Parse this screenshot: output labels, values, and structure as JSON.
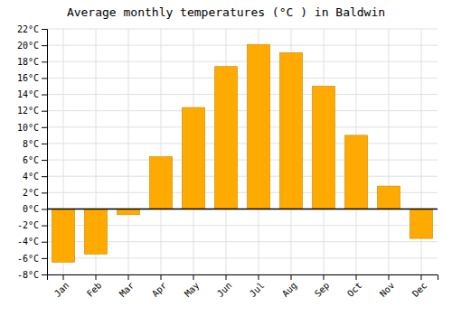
{
  "chart_data": {
    "type": "bar",
    "title": "Average monthly temperatures (°C ) in Baldwin",
    "categories": [
      "Jan",
      "Feb",
      "Mar",
      "Apr",
      "May",
      "Jun",
      "Jul",
      "Aug",
      "Sep",
      "Oct",
      "Nov",
      "Dec"
    ],
    "values": [
      -6.5,
      -5.5,
      -0.7,
      6.4,
      12.4,
      17.4,
      20.1,
      19.1,
      15.0,
      9.0,
      2.8,
      -3.6
    ],
    "color": "#FFAA00",
    "ylim": [
      -8,
      22
    ],
    "yticks": [
      {
        "value": -8,
        "label": "-8°C"
      },
      {
        "value": -6,
        "label": "-6°C"
      },
      {
        "value": -4,
        "label": "-4°C"
      },
      {
        "value": -2,
        "label": "-2°C"
      },
      {
        "value": 0,
        "label": "0°C"
      },
      {
        "value": 2,
        "label": "2°C"
      },
      {
        "value": 4,
        "label": "4°C"
      },
      {
        "value": 6,
        "label": "6°C"
      },
      {
        "value": 8,
        "label": "8°C"
      },
      {
        "value": 10,
        "label": "10°C"
      },
      {
        "value": 12,
        "label": "12°C"
      },
      {
        "value": 14,
        "label": "14°C"
      },
      {
        "value": 16,
        "label": "16°C"
      },
      {
        "value": 18,
        "label": "18°C"
      },
      {
        "value": 20,
        "label": "20°C"
      },
      {
        "value": 22,
        "label": "22°C"
      }
    ],
    "grid": true
  }
}
